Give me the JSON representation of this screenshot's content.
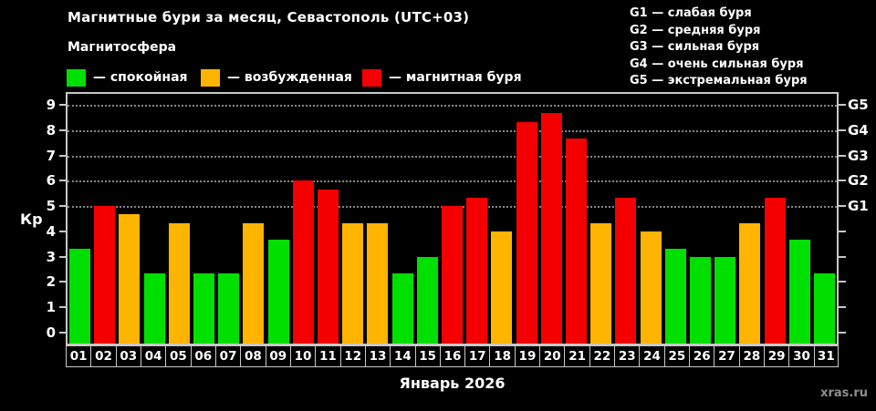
{
  "header": {
    "title": "Магнитные бури за месяц, Севастополь (UTC+03)",
    "subtitle": "Магнитосфера"
  },
  "legend": {
    "items": [
      {
        "label": "— спокойная",
        "color": "#00e000",
        "status": "quiet"
      },
      {
        "label": "— возбужденная",
        "color": "#ffb400",
        "status": "unsettled"
      },
      {
        "label": "— магнитная буря",
        "color": "#f40000",
        "status": "storm"
      }
    ]
  },
  "g_legend": {
    "items": [
      {
        "label": "G1 — слабая буря"
      },
      {
        "label": "G2 — средняя буря"
      },
      {
        "label": "G3 — сильная буря"
      },
      {
        "label": "G4 — очень сильная буря"
      },
      {
        "label": "G5 — экстремальная буря"
      }
    ]
  },
  "chart_data": {
    "type": "bar",
    "title": "Магнитные бури за месяц, Севастополь (UTC+03)",
    "xlabel": "Январь 2026",
    "ylabel": "Кр",
    "ylim": [
      0,
      9
    ],
    "yticks": [
      0,
      1,
      2,
      3,
      4,
      5,
      6,
      7,
      8,
      9
    ],
    "gridlines_at": [
      5,
      6,
      7,
      8,
      9
    ],
    "grid": "dotted horizontal at storm levels only",
    "legend_position": "top-left",
    "right_axis": [
      {
        "value": 5,
        "label": "G1"
      },
      {
        "value": 6,
        "label": "G2"
      },
      {
        "value": 7,
        "label": "G3"
      },
      {
        "value": 8,
        "label": "G4"
      },
      {
        "value": 9,
        "label": "G5"
      }
    ],
    "categories": [
      "01",
      "02",
      "03",
      "04",
      "05",
      "06",
      "07",
      "08",
      "09",
      "10",
      "11",
      "12",
      "13",
      "14",
      "15",
      "16",
      "17",
      "18",
      "19",
      "20",
      "21",
      "22",
      "23",
      "24",
      "25",
      "26",
      "27",
      "28",
      "29",
      "30",
      "31"
    ],
    "values": [
      3.33,
      5.0,
      4.67,
      2.33,
      4.33,
      2.33,
      2.33,
      4.33,
      3.67,
      6.0,
      5.67,
      4.33,
      4.33,
      2.33,
      3.0,
      5.0,
      5.33,
      4.0,
      8.33,
      8.67,
      7.67,
      4.33,
      5.33,
      4.0,
      3.33,
      3.0,
      3.0,
      4.33,
      5.33,
      3.67,
      2.33
    ],
    "statuses": [
      "quiet",
      "storm",
      "unsettled",
      "quiet",
      "unsettled",
      "quiet",
      "quiet",
      "unsettled",
      "quiet",
      "storm",
      "storm",
      "unsettled",
      "unsettled",
      "quiet",
      "quiet",
      "storm",
      "storm",
      "unsettled",
      "storm",
      "storm",
      "storm",
      "unsettled",
      "storm",
      "unsettled",
      "quiet",
      "quiet",
      "quiet",
      "unsettled",
      "storm",
      "quiet",
      "quiet"
    ],
    "status_colors": {
      "quiet": "#00e000",
      "unsettled": "#ffb400",
      "storm": "#f40000"
    }
  },
  "footer": {
    "xlabel": "Январь 2026",
    "watermark": "xras.ru"
  }
}
